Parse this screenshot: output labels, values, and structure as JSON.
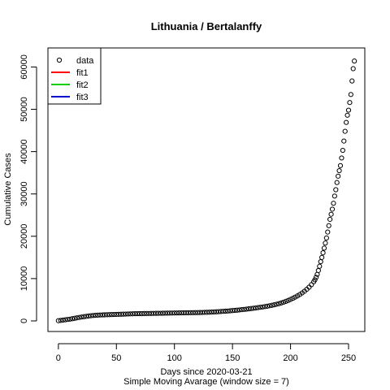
{
  "chart_data": {
    "type": "scatter",
    "title": "Lithuania / Bertalanffy",
    "xlabel": "Days since 2020-03-21",
    "subtitle": "Simple Moving Avarage (window size = 7)",
    "ylabel": "Cumulative Cases",
    "xlim": [
      -9,
      264
    ],
    "ylim": [
      -2500,
      64500
    ],
    "x_ticks": [
      0,
      50,
      100,
      150,
      200,
      250
    ],
    "y_ticks": [
      0,
      10000,
      20000,
      30000,
      40000,
      50000,
      60000
    ],
    "legend": {
      "position": "top-left",
      "entries": [
        {
          "label": "data",
          "symbol": "circle",
          "color": "#000000"
        },
        {
          "label": "fit1",
          "symbol": "line",
          "color": "#ff0000"
        },
        {
          "label": "fit2",
          "symbol": "line",
          "color": "#00cc00"
        },
        {
          "label": "fit3",
          "symbol": "line",
          "color": "#0000cc"
        }
      ]
    },
    "series": [
      {
        "marker": "open-circle",
        "color": "#000000",
        "points": [
          [
            0,
            50
          ],
          [
            2,
            120
          ],
          [
            4,
            190
          ],
          [
            6,
            260
          ],
          [
            8,
            340
          ],
          [
            10,
            420
          ],
          [
            12,
            520
          ],
          [
            14,
            620
          ],
          [
            16,
            720
          ],
          [
            18,
            820
          ],
          [
            20,
            920
          ],
          [
            22,
            1000
          ],
          [
            24,
            1080
          ],
          [
            26,
            1150
          ],
          [
            28,
            1220
          ],
          [
            30,
            1280
          ],
          [
            32,
            1330
          ],
          [
            34,
            1370
          ],
          [
            36,
            1400
          ],
          [
            38,
            1420
          ],
          [
            40,
            1440
          ],
          [
            42,
            1460
          ],
          [
            44,
            1480
          ],
          [
            46,
            1500
          ],
          [
            48,
            1520
          ],
          [
            50,
            1540
          ],
          [
            52,
            1560
          ],
          [
            54,
            1580
          ],
          [
            56,
            1600
          ],
          [
            58,
            1620
          ],
          [
            60,
            1640
          ],
          [
            62,
            1660
          ],
          [
            64,
            1680
          ],
          [
            66,
            1700
          ],
          [
            68,
            1710
          ],
          [
            70,
            1720
          ],
          [
            72,
            1730
          ],
          [
            74,
            1740
          ],
          [
            76,
            1750
          ],
          [
            78,
            1760
          ],
          [
            80,
            1770
          ],
          [
            82,
            1780
          ],
          [
            84,
            1790
          ],
          [
            86,
            1800
          ],
          [
            88,
            1810
          ],
          [
            90,
            1820
          ],
          [
            92,
            1830
          ],
          [
            94,
            1840
          ],
          [
            96,
            1850
          ],
          [
            98,
            1860
          ],
          [
            100,
            1870
          ],
          [
            102,
            1880
          ],
          [
            104,
            1890
          ],
          [
            106,
            1900
          ],
          [
            108,
            1910
          ],
          [
            110,
            1920
          ],
          [
            112,
            1930
          ],
          [
            114,
            1940
          ],
          [
            116,
            1950
          ],
          [
            118,
            1960
          ],
          [
            120,
            1970
          ],
          [
            122,
            1980
          ],
          [
            124,
            2000
          ],
          [
            126,
            2020
          ],
          [
            128,
            2040
          ],
          [
            130,
            2060
          ],
          [
            132,
            2090
          ],
          [
            134,
            2120
          ],
          [
            136,
            2150
          ],
          [
            138,
            2180
          ],
          [
            140,
            2220
          ],
          [
            142,
            2260
          ],
          [
            144,
            2300
          ],
          [
            146,
            2340
          ],
          [
            148,
            2390
          ],
          [
            150,
            2440
          ],
          [
            152,
            2490
          ],
          [
            154,
            2540
          ],
          [
            156,
            2600
          ],
          [
            158,
            2660
          ],
          [
            160,
            2720
          ],
          [
            162,
            2780
          ],
          [
            164,
            2850
          ],
          [
            166,
            2920
          ],
          [
            168,
            2990
          ],
          [
            170,
            3060
          ],
          [
            172,
            3140
          ],
          [
            174,
            3220
          ],
          [
            176,
            3300
          ],
          [
            178,
            3390
          ],
          [
            180,
            3480
          ],
          [
            182,
            3580
          ],
          [
            184,
            3690
          ],
          [
            186,
            3810
          ],
          [
            188,
            3940
          ],
          [
            190,
            4080
          ],
          [
            192,
            4240
          ],
          [
            194,
            4420
          ],
          [
            196,
            4620
          ],
          [
            198,
            4840
          ],
          [
            200,
            5080
          ],
          [
            202,
            5340
          ],
          [
            204,
            5620
          ],
          [
            206,
            5920
          ],
          [
            208,
            6250
          ],
          [
            210,
            6610
          ],
          [
            212,
            7010
          ],
          [
            214,
            7460
          ],
          [
            216,
            7970
          ],
          [
            218,
            8560
          ],
          [
            220,
            9250
          ],
          [
            221,
            9700
          ],
          [
            222,
            10300
          ],
          [
            223,
            11000
          ],
          [
            224,
            11900
          ],
          [
            225,
            12900
          ],
          [
            226,
            14000
          ],
          [
            227,
            15000
          ],
          [
            228,
            16100
          ],
          [
            229,
            17200
          ],
          [
            230,
            18400
          ],
          [
            231,
            19600
          ],
          [
            232,
            21000
          ],
          [
            233,
            22500
          ],
          [
            234,
            24000
          ],
          [
            235,
            25200
          ],
          [
            236,
            26400
          ],
          [
            237,
            27800
          ],
          [
            238,
            29500
          ],
          [
            239,
            31000
          ],
          [
            240,
            32700
          ],
          [
            241,
            34200
          ],
          [
            242,
            35500
          ],
          [
            243,
            36700
          ],
          [
            244,
            38500
          ],
          [
            245,
            40300
          ],
          [
            246,
            42500
          ],
          [
            247,
            44800
          ],
          [
            248,
            46900
          ],
          [
            249,
            48600
          ],
          [
            250,
            49800
          ],
          [
            251,
            51600
          ],
          [
            252,
            53500
          ],
          [
            253,
            56700
          ],
          [
            254,
            59600
          ],
          [
            255,
            61400
          ]
        ]
      }
    ]
  }
}
